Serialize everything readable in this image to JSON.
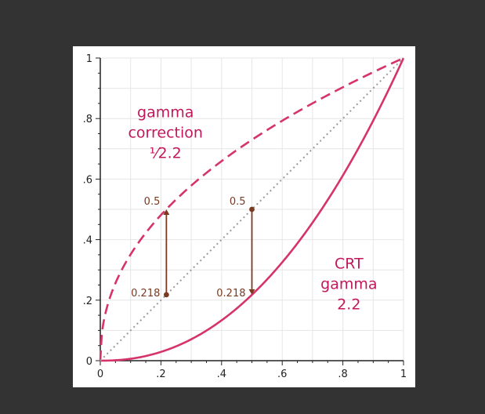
{
  "chart_data": {
    "type": "line",
    "xlim": [
      0,
      1
    ],
    "ylim": [
      0,
      1
    ],
    "grid": true,
    "x_ticks": [
      0,
      0.2,
      0.4,
      0.6,
      0.8,
      1
    ],
    "x_tick_labels": [
      "0",
      ".2",
      ".4",
      ".6",
      ".8",
      "1"
    ],
    "y_ticks": [
      0,
      0.2,
      0.4,
      0.6,
      0.8,
      1
    ],
    "y_tick_labels": [
      "0",
      ".2",
      ".4",
      ".6",
      ".8",
      "1"
    ],
    "series": [
      {
        "key": "gamma-correction",
        "formula": "y = x^(1/2.2)",
        "exponent": 0.4545,
        "style": "dashed",
        "color": "#d6336c",
        "label_lines": [
          "gamma",
          "correction",
          "⅟2.2"
        ]
      },
      {
        "key": "crt-gamma",
        "formula": "y = x^2.2",
        "exponent": 2.2,
        "style": "solid",
        "color": "#d6336c",
        "label_lines": [
          "CRT",
          "gamma",
          "2.2"
        ]
      },
      {
        "key": "identity",
        "formula": "y = x",
        "exponent": 1,
        "style": "dotted",
        "color": "#999999"
      }
    ],
    "annotations": [
      {
        "x": 0.218,
        "y_from": 0.218,
        "y_to": 0.5,
        "dot_at": "from",
        "arrow_at": "to",
        "label_top": "0.5",
        "label_bottom": "0.218"
      },
      {
        "x": 0.5,
        "y_from": 0.5,
        "y_to": 0.218,
        "dot_at": "from",
        "arrow_at": "to",
        "label_top": "0.5",
        "label_bottom": "0.218"
      }
    ],
    "annotation_color": "#7a3a1f",
    "grid_color": "#e6e6e6"
  }
}
